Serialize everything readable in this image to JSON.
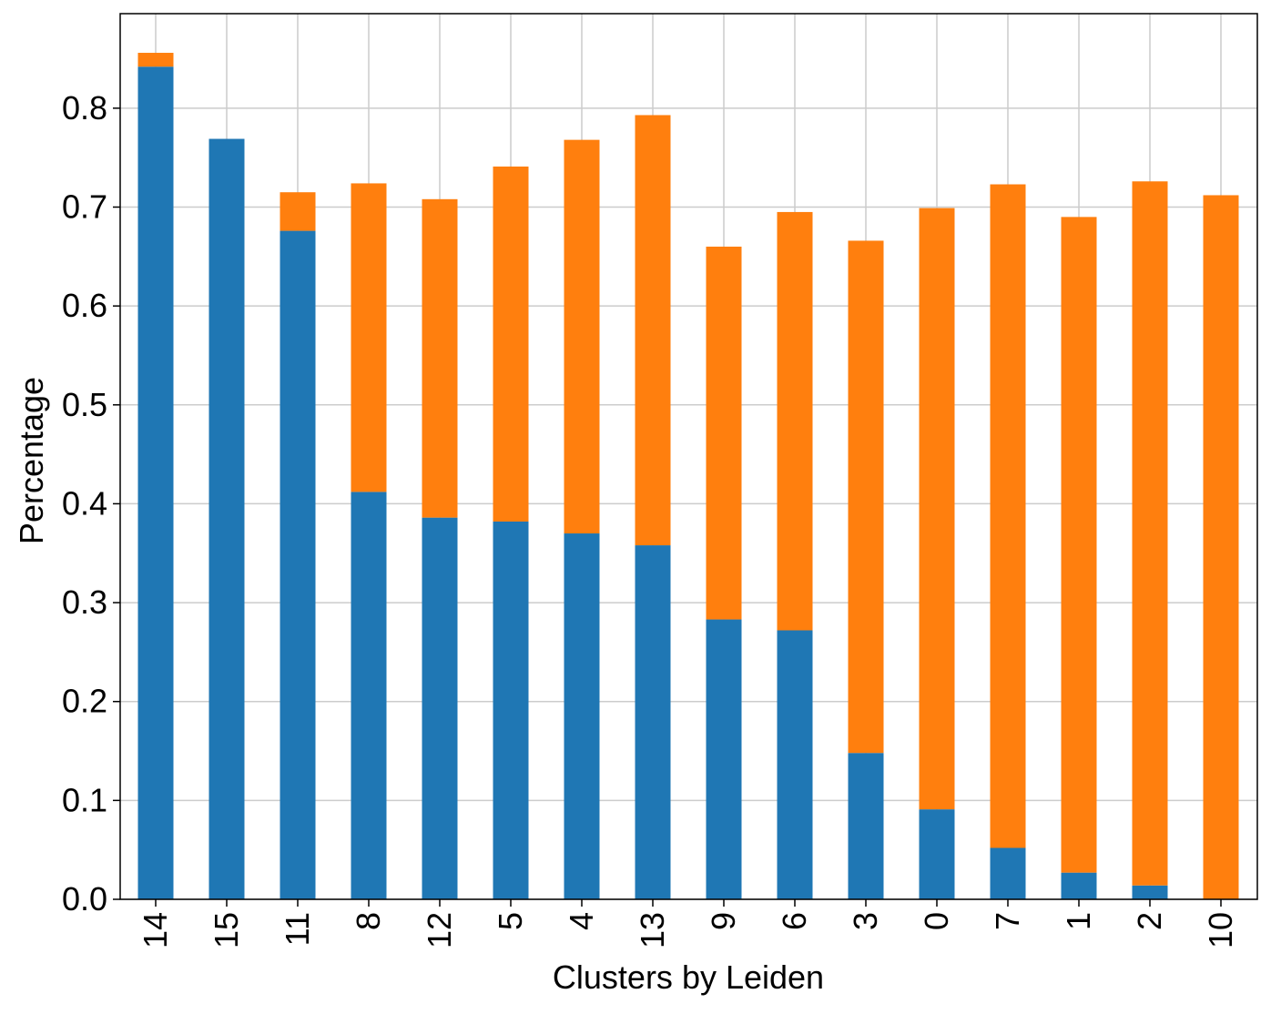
{
  "chart_data": {
    "type": "bar",
    "stacked": true,
    "xlabel": "Clusters by Leiden",
    "ylabel": "Percentage",
    "categories": [
      "14",
      "15",
      "11",
      "8",
      "12",
      "5",
      "4",
      "13",
      "9",
      "6",
      "3",
      "0",
      "7",
      "1",
      "2",
      "10"
    ],
    "series": [
      {
        "color": "#1f77b4",
        "values": [
          0.842,
          0.769,
          0.676,
          0.412,
          0.386,
          0.382,
          0.37,
          0.358,
          0.283,
          0.272,
          0.148,
          0.091,
          0.052,
          0.027,
          0.014,
          0.0
        ]
      },
      {
        "color": "#ff7f0e",
        "values": [
          0.014,
          0.0,
          0.039,
          0.312,
          0.322,
          0.359,
          0.398,
          0.435,
          0.377,
          0.423,
          0.518,
          0.608,
          0.671,
          0.663,
          0.712,
          0.712
        ]
      }
    ],
    "ylim": [
      0,
      0.8956
    ],
    "yticks": [
      "0.0",
      "0.1",
      "0.2",
      "0.3",
      "0.4",
      "0.5",
      "0.6",
      "0.7",
      "0.8"
    ],
    "grid": true,
    "legend": false
  }
}
